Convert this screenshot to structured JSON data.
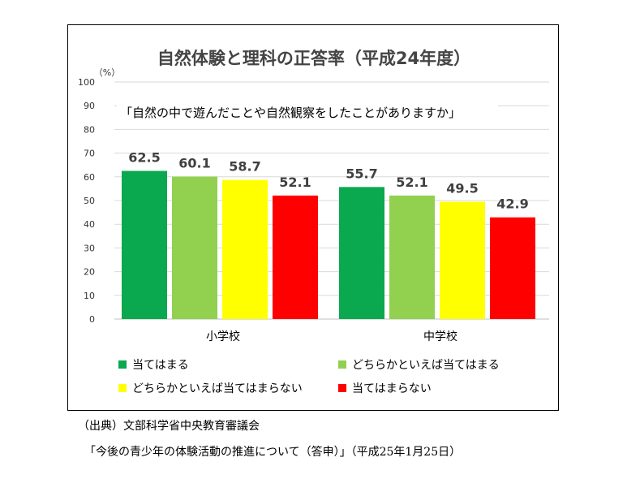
{
  "chart_data": {
    "type": "bar",
    "title": "自然体験と理科の正答率（平成24年度）",
    "subtitle": "「自然の中で遊んだことや自然観察をしたことがありますか」",
    "ylabel": "（%）",
    "xlabel": "",
    "ylim": [
      0,
      100
    ],
    "yticks": [
      0,
      10,
      20,
      30,
      40,
      50,
      60,
      70,
      80,
      90,
      100
    ],
    "grid": true,
    "categories": [
      "小学校",
      "中学校"
    ],
    "series": [
      {
        "name": "当てはまる",
        "color": "#0aa84f",
        "values": [
          62.5,
          55.7
        ]
      },
      {
        "name": "どちらかといえば当てはまる",
        "color": "#92d050",
        "values": [
          60.1,
          52.1
        ]
      },
      {
        "name": "どちらかといえば当てはまらない",
        "color": "#ffff00",
        "values": [
          58.7,
          49.5
        ]
      },
      {
        "name": "当てはまらない",
        "color": "#ff0000",
        "values": [
          52.1,
          42.9
        ]
      }
    ],
    "legend_position": "bottom"
  },
  "source": {
    "line1": "（出典）文部科学省中央教育審議会",
    "line2": "「今後の青少年の体験活動の推進について（答申）」（平成25年1月25日）"
  }
}
